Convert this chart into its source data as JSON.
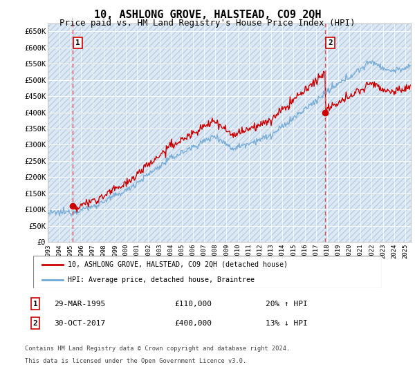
{
  "title": "10, ASHLONG GROVE, HALSTEAD, CO9 2QH",
  "subtitle": "Price paid vs. HM Land Registry's House Price Index (HPI)",
  "ylim": [
    0,
    675000
  ],
  "xlim_start": 1993.0,
  "xlim_end": 2025.5,
  "transaction1": {
    "date_num": 1995.24,
    "price": 110000,
    "label": "1",
    "date_str": "29-MAR-1995",
    "price_str": "£110,000",
    "hpi_str": "20% ↑ HPI"
  },
  "transaction2": {
    "date_num": 2017.83,
    "price": 400000,
    "label": "2",
    "date_str": "30-OCT-2017",
    "price_str": "£400,000",
    "hpi_str": "13% ↓ HPI"
  },
  "legend_line1": "10, ASHLONG GROVE, HALSTEAD, CO9 2QH (detached house)",
  "legend_line2": "HPI: Average price, detached house, Braintree",
  "footer1": "Contains HM Land Registry data © Crown copyright and database right 2024.",
  "footer2": "This data is licensed under the Open Government Licence v3.0.",
  "hpi_color": "#6fa8d6",
  "price_color": "#cc0000",
  "background_color": "#dce8f5",
  "hatch_color": "#b8cfe0",
  "grid_color": "#ffffff",
  "dashed_line_color": "#e05050",
  "title_fontsize": 11,
  "subtitle_fontsize": 9
}
